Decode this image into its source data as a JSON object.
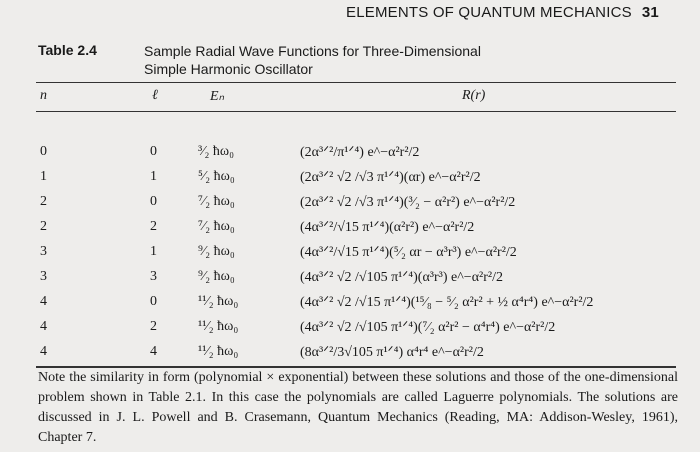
{
  "running_head": {
    "title": "ELEMENTS OF QUANTUM MECHANICS",
    "page": "31"
  },
  "caption": {
    "label": "Table 2.4",
    "title": "Sample Radial Wave Functions for Three-Dimensional Simple Harmonic Oscillator"
  },
  "table": {
    "headers": [
      "n",
      "ℓ",
      "Eₙ",
      "R(r)"
    ],
    "rows": [
      {
        "n": "0",
        "l": "0",
        "E": "³⁄₂ ħω₀",
        "R": "(2α³ᐟ²/π¹ᐟ⁴) e^−α²r²/2"
      },
      {
        "n": "1",
        "l": "1",
        "E": "⁵⁄₂ ħω₀",
        "R": "(2α³ᐟ² √2 /√3 π¹ᐟ⁴)(αr) e^−α²r²/2"
      },
      {
        "n": "2",
        "l": "0",
        "E": "⁷⁄₂ ħω₀",
        "R": "(2α³ᐟ² √2 /√3 π¹ᐟ⁴)(³⁄₂ − α²r²) e^−α²r²/2"
      },
      {
        "n": "2",
        "l": "2",
        "E": "⁷⁄₂ ħω₀",
        "R": "(4α³ᐟ²/√15 π¹ᐟ⁴)(α²r²) e^−α²r²/2"
      },
      {
        "n": "3",
        "l": "1",
        "E": "⁹⁄₂ ħω₀",
        "R": "(4α³ᐟ²/√15 π¹ᐟ⁴)(⁵⁄₂ αr − α³r³) e^−α²r²/2"
      },
      {
        "n": "3",
        "l": "3",
        "E": "⁹⁄₂ ħω₀",
        "R": "(4α³ᐟ² √2 /√105 π¹ᐟ⁴)(α³r³) e^−α²r²/2"
      },
      {
        "n": "4",
        "l": "0",
        "E": "¹¹⁄₂ ħω₀",
        "R": "(4α³ᐟ² √2 /√15 π¹ᐟ⁴)(¹⁵⁄₈ − ⁵⁄₂ α²r² + ½ α⁴r⁴) e^−α²r²/2"
      },
      {
        "n": "4",
        "l": "2",
        "E": "¹¹⁄₂ ħω₀",
        "R": "(4α³ᐟ² √2 /√105 π¹ᐟ⁴)(⁷⁄₂ α²r² − α⁴r⁴) e^−α²r²/2"
      },
      {
        "n": "4",
        "l": "4",
        "E": "¹¹⁄₂ ħω₀",
        "R": "(8α³ᐟ²/3√105 π¹ᐟ⁴) α⁴r⁴ e^−α²r²/2"
      }
    ]
  },
  "note": "Note the similarity in form (polynomial × exponential) between these solutions and those of the one-dimensional problem shown in Table 2.1. In this case the polynomials are called Laguerre polynomials. The solutions are discussed in J. L. Powell and B. Crasemann, Quantum Mechanics (Reading, MA: Addison-Wesley, 1961), Chapter 7."
}
